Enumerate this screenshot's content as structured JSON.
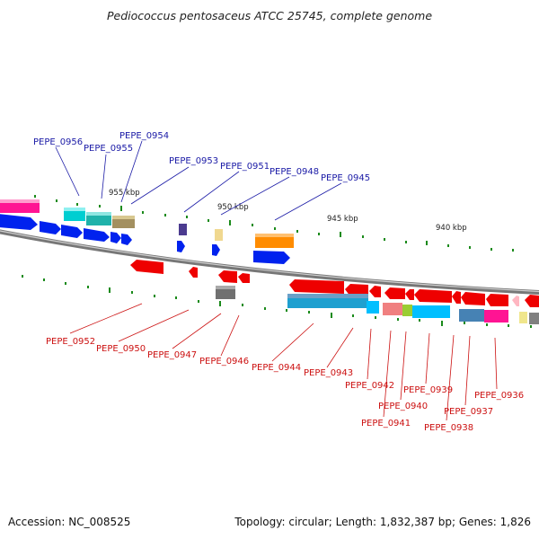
{
  "title": "Pediococcus pentosaceus ATCC 25745, complete genome",
  "footer": {
    "accession": "Accession: NC_008525",
    "summary": "Topology: circular; Length: 1,832,387 bp; Genes: 1,826"
  },
  "ticks": [
    "955 kbp",
    "950 kbp",
    "945 kbp",
    "940 kbp"
  ],
  "labels_top": [
    "PEPE_0956",
    "PEPE_0955",
    "PEPE_0954",
    "PEPE_0953",
    "PEPE_0951",
    "PEPE_0948",
    "PEPE_0945"
  ],
  "labels_bottom": [
    "PEPE_0952",
    "PEPE_0950",
    "PEPE_0947",
    "PEPE_0946",
    "PEPE_0944",
    "PEPE_0943",
    "PEPE_0942",
    "PEPE_0941",
    "PEPE_0940",
    "PEPE_0939",
    "PEPE_0938",
    "PEPE_0937",
    "PEPE_0936"
  ],
  "colors": {
    "top_label": "#1a1aa6",
    "bottom_label": "#cc1111",
    "backbone": "#8a8a8a",
    "tick": "#1a8a1a"
  }
}
